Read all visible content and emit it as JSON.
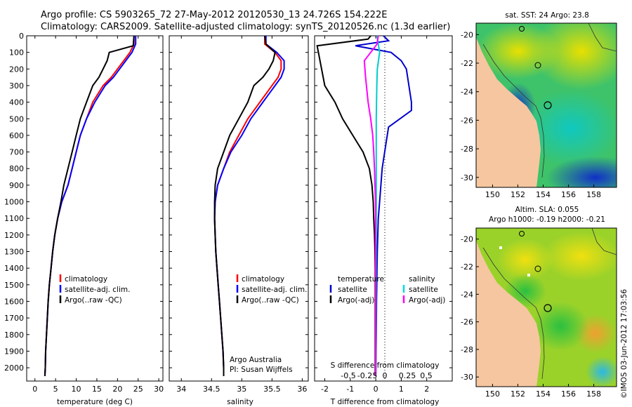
{
  "header": {
    "line1": "Argo profile: CS 5903265_72 27-May-2012 20120530_13 24.726S 154.222E",
    "line2": "Climatology: CARS2009. Satellite-adjusted climatology: synTS_20120526.nc (1.3d earlier)"
  },
  "chart_data": [
    {
      "type": "line",
      "xlabel": "temperature (deg C)",
      "ylabel": "",
      "xlim": [
        -2,
        31
      ],
      "ylim": [
        2080,
        0
      ],
      "xticks": [
        0,
        5,
        10,
        15,
        20,
        25,
        30
      ],
      "yticks": [
        0,
        100,
        200,
        300,
        400,
        500,
        600,
        700,
        800,
        900,
        1000,
        1100,
        1200,
        1300,
        1400,
        1500,
        1600,
        1700,
        1800,
        1900,
        2000
      ],
      "legend": [
        "climatology",
        "satellite-adj. clim.",
        "Argo(..raw -QC)"
      ],
      "legend_position": "lower-center",
      "series": [
        {
          "name": "climatology",
          "color": "#ff0000",
          "x": [
            24.0,
            24.0,
            23.0,
            21.5,
            20.0,
            18.5,
            16.5,
            14.0,
            12.5,
            11.0,
            10.0,
            9.0,
            8.0,
            6.5,
            5.5,
            4.8,
            4.3,
            3.9,
            3.5,
            3.2,
            3.0,
            2.8,
            2.6,
            2.5,
            2.4
          ],
          "y": [
            0,
            50,
            100,
            150,
            200,
            250,
            300,
            400,
            500,
            600,
            700,
            800,
            900,
            1000,
            1100,
            1200,
            1300,
            1400,
            1500,
            1600,
            1700,
            1800,
            1900,
            2000,
            2050
          ]
        },
        {
          "name": "satellite-adj. clim.",
          "color": "#0000ff",
          "x": [
            24.4,
            24.4,
            23.5,
            22.0,
            20.5,
            19.0,
            17.0,
            14.5,
            12.5,
            11.0,
            10.0,
            9.0,
            8.0,
            6.5,
            5.5,
            4.8,
            4.3,
            3.9,
            3.5,
            3.2,
            3.0,
            2.8,
            2.6,
            2.5,
            2.4
          ],
          "y": [
            0,
            50,
            100,
            150,
            200,
            250,
            300,
            400,
            500,
            600,
            700,
            800,
            900,
            1000,
            1100,
            1200,
            1300,
            1400,
            1500,
            1600,
            1700,
            1800,
            1900,
            2000,
            2050
          ]
        },
        {
          "name": "Argo(..raw -QC)",
          "color": "#000000",
          "x": [
            24.0,
            23.8,
            18.0,
            17.5,
            16.5,
            15.5,
            14.0,
            12.5,
            11.0,
            10.0,
            9.0,
            8.0,
            7.0,
            6.3,
            5.5,
            4.8,
            4.3,
            3.9,
            3.5,
            3.2,
            3.0,
            2.8,
            2.6,
            2.5,
            2.4
          ],
          "y": [
            0,
            60,
            100,
            150,
            200,
            250,
            300,
            400,
            500,
            600,
            700,
            800,
            900,
            1000,
            1100,
            1200,
            1300,
            1400,
            1500,
            1600,
            1700,
            1800,
            1900,
            2000,
            2050
          ]
        }
      ]
    },
    {
      "type": "line",
      "xlabel": "salinity",
      "ylabel": "",
      "xlim": [
        33.8,
        36.1
      ],
      "ylim": [
        2080,
        0
      ],
      "xticks": [
        34,
        34.5,
        35,
        35.5,
        36
      ],
      "legend": [
        "climatology",
        "satellite-adj. clim.",
        "Argo(..raw -QC)"
      ],
      "legend_position": "lower-right",
      "annotation": [
        "Argo Australia",
        "PI: Susan Wijffels"
      ],
      "series": [
        {
          "name": "climatology",
          "color": "#ff0000",
          "x": [
            35.38,
            35.38,
            35.55,
            35.65,
            35.65,
            35.6,
            35.5,
            35.3,
            35.1,
            34.95,
            34.8,
            34.7,
            34.6,
            34.56,
            34.55,
            34.56,
            34.57,
            34.59,
            34.61,
            34.63,
            34.65,
            34.67,
            34.69,
            34.7,
            34.7
          ],
          "y": [
            0,
            50,
            100,
            150,
            200,
            250,
            300,
            400,
            500,
            600,
            700,
            800,
            900,
            1000,
            1100,
            1200,
            1300,
            1400,
            1500,
            1600,
            1700,
            1800,
            1900,
            2000,
            2050
          ]
        },
        {
          "name": "satellite-adj. clim.",
          "color": "#0000ff",
          "x": [
            35.4,
            35.4,
            35.58,
            35.7,
            35.7,
            35.65,
            35.55,
            35.35,
            35.15,
            35.0,
            34.82,
            34.7,
            34.6,
            34.56,
            34.55,
            34.56,
            34.57,
            34.59,
            34.61,
            34.63,
            34.65,
            34.67,
            34.69,
            34.7,
            34.7
          ],
          "y": [
            0,
            50,
            100,
            150,
            200,
            250,
            300,
            400,
            500,
            600,
            700,
            800,
            900,
            1000,
            1100,
            1200,
            1300,
            1400,
            1500,
            1600,
            1700,
            1800,
            1900,
            2000,
            2050
          ]
        },
        {
          "name": "Argo(..raw -QC)",
          "color": "#000000",
          "x": [
            35.38,
            35.4,
            35.55,
            35.52,
            35.45,
            35.35,
            35.2,
            35.1,
            34.95,
            34.8,
            34.7,
            34.6,
            34.56,
            34.55,
            34.55,
            34.56,
            34.57,
            34.59,
            34.61,
            34.63,
            34.65,
            34.67,
            34.69,
            34.7,
            34.7
          ],
          "y": [
            0,
            50,
            100,
            150,
            200,
            250,
            300,
            400,
            500,
            600,
            700,
            800,
            900,
            1000,
            1100,
            1200,
            1300,
            1400,
            1500,
            1600,
            1700,
            1800,
            1900,
            2000,
            2050
          ]
        }
      ]
    },
    {
      "type": "line",
      "xlabel": "T difference from climatology",
      "xlabel2": "S difference from climatology",
      "ylabel": "",
      "xlim": [
        -2.4,
        3.0
      ],
      "ylim": [
        2080,
        0
      ],
      "xticks": [
        -2,
        -1,
        0,
        1,
        2
      ],
      "xticks_S": [
        "-0.5",
        "-0.25",
        "0",
        "0.25",
        "0.5"
      ],
      "legend_titles": [
        "temperature",
        "salinity"
      ],
      "legend": [
        "satellite",
        "Argo(-adj)",
        "satellite",
        "Argo(-adj)"
      ],
      "legend_position": "lower-center",
      "series": [
        {
          "name": "satellite",
          "group": "temperature",
          "color": "#0000cc",
          "x": [
            0.3,
            0.5,
            -0.8,
            0.6,
            1.0,
            1.2,
            1.3,
            1.4,
            1.4,
            0.5,
            0.35,
            0.25,
            0.2,
            0.15,
            0.1,
            0.08,
            0.06,
            0.05,
            0.04,
            0.03,
            0.02,
            0.0
          ],
          "y": [
            0,
            30,
            60,
            100,
            150,
            200,
            300,
            400,
            450,
            550,
            700,
            800,
            900,
            1000,
            1100,
            1200,
            1300,
            1400,
            1500,
            1600,
            1800,
            2050
          ]
        },
        {
          "name": "Argo(-adj)",
          "group": "temperature",
          "color": "#000000",
          "x": [
            -0.2,
            -0.3,
            -2.3,
            -2.0,
            -1.6,
            -1.3,
            -0.9,
            -0.5,
            -0.25,
            -0.15,
            -0.1,
            -0.08,
            -0.05,
            -0.03,
            -0.02,
            -0.02,
            -0.02,
            -0.02
          ],
          "y": [
            0,
            20,
            60,
            300,
            400,
            500,
            600,
            700,
            800,
            900,
            1000,
            1100,
            1200,
            1300,
            1400,
            1600,
            1800,
            2050
          ]
        },
        {
          "name": "satellite",
          "group": "salinity",
          "color": "#00cccc",
          "x": [
            0.05,
            0.1,
            0.15,
            0.06,
            0.04,
            0.03,
            0.02,
            0.02,
            0.02,
            0.01,
            0.0
          ],
          "y": [
            0,
            50,
            100,
            200,
            300,
            400,
            500,
            700,
            1000,
            1500,
            2050
          ]
        },
        {
          "name": "Argo(-adj)",
          "group": "salinity",
          "color": "#ff00ff",
          "x": [
            0.1,
            0.05,
            -0.2,
            -0.45,
            -0.4,
            -0.3,
            -0.2,
            -0.12,
            -0.08,
            -0.05,
            -0.03,
            -0.01,
            0.0,
            0.0
          ],
          "y": [
            0,
            50,
            100,
            150,
            250,
            400,
            500,
            600,
            700,
            800,
            900,
            1000,
            1500,
            2050
          ]
        }
      ]
    },
    {
      "type": "heatmap",
      "title": "sat. SST: 24 Argo: 23.8",
      "xticks": [
        150,
        152,
        154,
        156,
        158
      ],
      "yticks": [
        -20,
        -22,
        -24,
        -26,
        -28,
        -30
      ],
      "xlim": [
        148.7,
        159.8
      ],
      "ylim": [
        -30.7,
        -19.2
      ],
      "marker": {
        "lon": 154.222,
        "lat": -24.726
      },
      "land_color": "#f5c6a0"
    },
    {
      "type": "heatmap",
      "title": "Altim. SLA: 0.055",
      "subtitle": "Argo h1000: -0.19 h2000: -0.21",
      "xticks": [
        150,
        152,
        154,
        156,
        158
      ],
      "yticks": [
        -20,
        -22,
        -24,
        -26,
        -28,
        -30
      ],
      "xlim": [
        148.7,
        159.8
      ],
      "ylim": [
        -30.7,
        -19.2
      ],
      "marker": {
        "lon": 154.222,
        "lat": -24.726
      },
      "land_color": "#f5c6a0"
    }
  ],
  "side_label": "©IMOS 03-Jun-2012 17:03:56"
}
